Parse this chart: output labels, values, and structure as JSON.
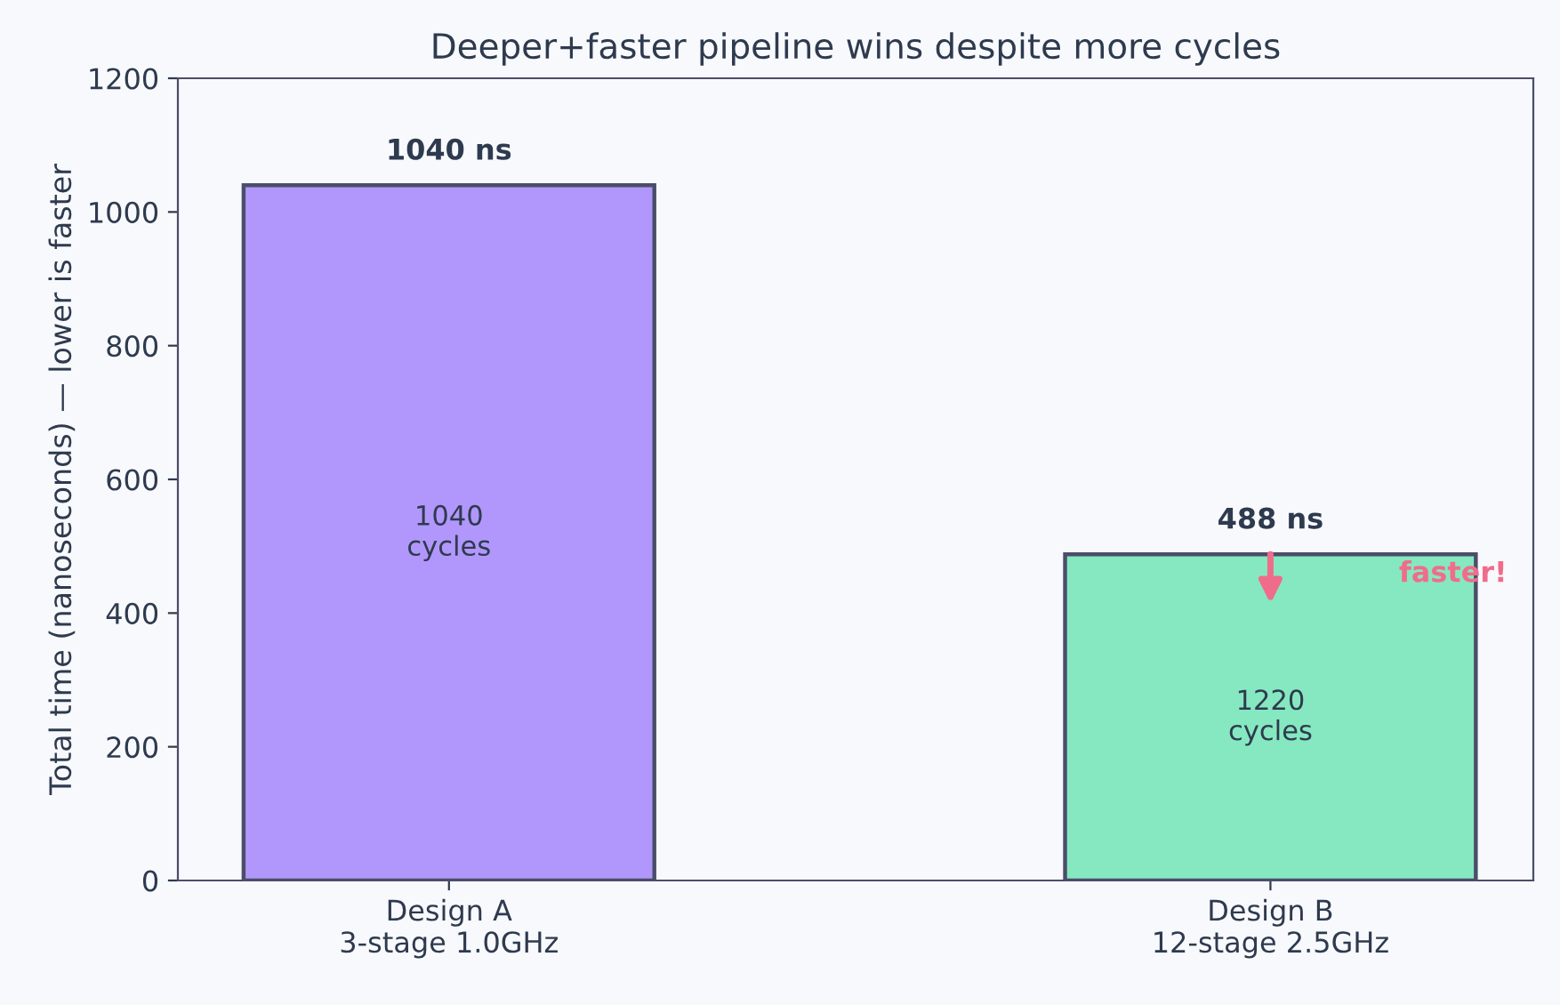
{
  "chart_data": {
    "type": "bar",
    "title": "Deeper+faster pipeline wins despite more cycles",
    "ylabel": "Total time (nanoseconds) — lower is faster",
    "categories": [
      "Design A\n3-stage 1.0GHz",
      "Design B\n12-stage 2.5GHz"
    ],
    "values": [
      1040,
      488
    ],
    "colors": [
      "#b197fc",
      "#86e8c0"
    ],
    "value_labels": [
      "1040 ns",
      "488 ns"
    ],
    "annotations": [
      "1040\ncycles",
      "1220\ncycles",
      "faster!"
    ],
    "ylim": [
      0,
      1200
    ],
    "yticks": [
      0,
      200,
      400,
      600,
      800,
      1000,
      1200
    ],
    "grid": false,
    "legend": false
  }
}
